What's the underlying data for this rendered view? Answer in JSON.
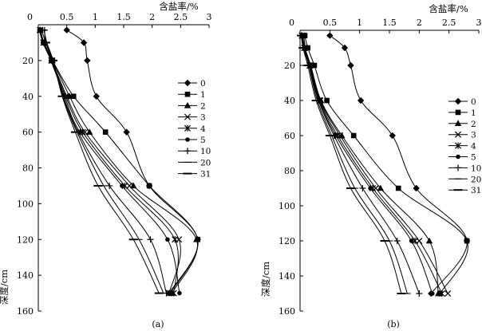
{
  "chart_data": [
    {
      "type": "line",
      "panel_label": "(a)",
      "x_axis": {
        "label": "含盐率/%",
        "position": "top",
        "range": [
          0,
          3
        ],
        "ticks": [
          0,
          0.5,
          1,
          1.5,
          2,
          2.5,
          3
        ],
        "tick_labels": [
          "0",
          "0.5",
          "1",
          "1.5",
          "2",
          "2.5",
          "3"
        ]
      },
      "y_axis": {
        "label": "深度/cm",
        "range": [
          0,
          160
        ],
        "inverted": true,
        "ticks": [
          0,
          20,
          40,
          60,
          80,
          100,
          120,
          140,
          160
        ],
        "tick_labels": [
          "0",
          "20",
          "40",
          "60",
          "80",
          "100",
          "120",
          "140",
          "160"
        ]
      },
      "legend_position": "right",
      "depths": [
        3,
        10,
        20,
        40,
        60,
        90,
        120,
        150
      ],
      "series": [
        {
          "name": "0",
          "marker": "diamond",
          "x": [
            0.5,
            0.8,
            0.86,
            1.02,
            1.55,
            1.95,
            2.8,
            2.3
          ]
        },
        {
          "name": "1",
          "marker": "square",
          "x": [
            0.04,
            0.1,
            0.25,
            0.62,
            1.18,
            1.95,
            2.8,
            2.32
          ]
        },
        {
          "name": "2",
          "marker": "triangle",
          "x": [
            0.03,
            0.1,
            0.25,
            0.55,
            0.9,
            1.67,
            2.78,
            2.35
          ]
        },
        {
          "name": "3",
          "marker": "x",
          "x": [
            0.03,
            0.09,
            0.24,
            0.5,
            0.82,
            1.6,
            2.47,
            2.3
          ]
        },
        {
          "name": "4",
          "marker": "asterisk",
          "x": [
            0.03,
            0.09,
            0.23,
            0.48,
            0.78,
            1.52,
            2.4,
            2.38
          ]
        },
        {
          "name": "5",
          "marker": "dot",
          "x": [
            0.02,
            0.08,
            0.22,
            0.46,
            0.73,
            1.47,
            2.27,
            2.48
          ]
        },
        {
          "name": "10",
          "marker": "plus",
          "x": [
            0.11,
            0.13,
            0.25,
            0.44,
            0.7,
            1.25,
            1.97,
            2.25
          ]
        },
        {
          "name": "20",
          "marker": "tick",
          "x": [
            0.1,
            0.15,
            0.26,
            0.43,
            0.68,
            1.15,
            1.77,
            2.2
          ]
        },
        {
          "name": "31",
          "marker": "hline",
          "x": [
            0.06,
            0.13,
            0.26,
            0.42,
            0.65,
            1.05,
            1.67,
            2.12
          ]
        }
      ]
    },
    {
      "type": "line",
      "panel_label": "(b)",
      "x_axis": {
        "label": "含盐率/%",
        "position": "top",
        "range": [
          0,
          3
        ],
        "ticks": [
          0,
          0.5,
          1,
          1.5,
          2,
          2.5,
          3
        ],
        "tick_labels": [
          "0",
          "0.5",
          "1",
          "1.5",
          "2",
          "2.5",
          "3"
        ]
      },
      "y_axis": {
        "label": "深度/cm",
        "range": [
          0,
          160
        ],
        "inverted": true,
        "ticks": [
          0,
          20,
          40,
          60,
          80,
          100,
          120,
          140,
          160
        ],
        "tick_labels": [
          "0",
          "20",
          "40",
          "60",
          "80",
          "100",
          "120",
          "140",
          "160"
        ]
      },
      "legend_position": "right",
      "depths": [
        3,
        10,
        20,
        40,
        60,
        90,
        120,
        150
      ],
      "series": [
        {
          "name": "0",
          "marker": "diamond",
          "x": [
            0.5,
            0.75,
            0.85,
            1.02,
            1.55,
            1.95,
            2.8,
            2.2
          ]
        },
        {
          "name": "1",
          "marker": "square",
          "x": [
            0.08,
            0.13,
            0.24,
            0.45,
            0.9,
            1.65,
            2.8,
            2.35
          ]
        },
        {
          "name": "2",
          "marker": "triangle",
          "x": [
            0.04,
            0.08,
            0.18,
            0.35,
            0.7,
            1.35,
            2.17,
            2.32
          ]
        },
        {
          "name": "3",
          "marker": "x",
          "x": [
            0.04,
            0.08,
            0.17,
            0.34,
            0.67,
            1.27,
            2.0,
            2.48
          ]
        },
        {
          "name": "4",
          "marker": "asterisk",
          "x": [
            0.03,
            0.07,
            0.16,
            0.33,
            0.63,
            1.22,
            1.93,
            2.38
          ]
        },
        {
          "name": "5",
          "marker": "dot",
          "x": [
            0.03,
            0.07,
            0.16,
            0.32,
            0.6,
            1.18,
            1.87,
            2.22
          ]
        },
        {
          "name": "10",
          "marker": "plus",
          "x": [
            0.02,
            0.06,
            0.15,
            0.31,
            0.57,
            1.05,
            1.63,
            2.0
          ]
        },
        {
          "name": "20",
          "marker": "tick",
          "x": [
            0.06,
            0.09,
            0.15,
            0.29,
            0.53,
            0.92,
            1.5,
            1.8
          ]
        },
        {
          "name": "31",
          "marker": "hline",
          "x": [
            0.02,
            0.05,
            0.13,
            0.27,
            0.5,
            0.85,
            1.42,
            1.7
          ]
        }
      ]
    }
  ]
}
